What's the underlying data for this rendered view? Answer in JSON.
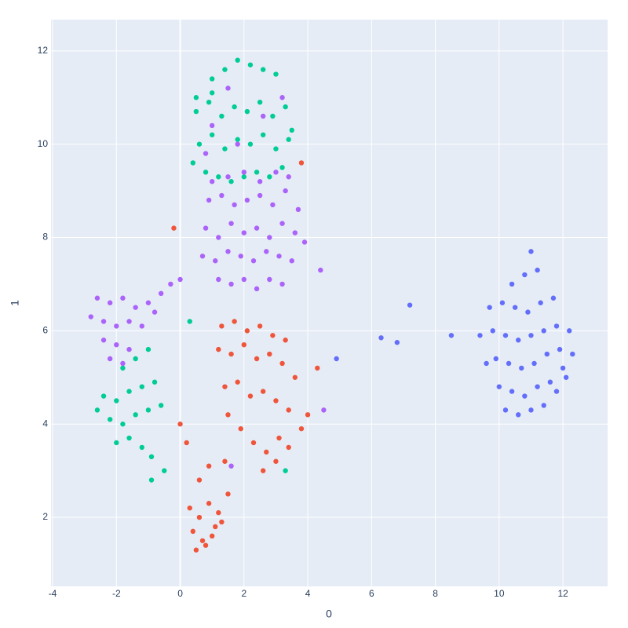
{
  "chart_data": {
    "type": "scatter",
    "x_label": "0",
    "y_label": "1",
    "xlim": [
      -4.05,
      13.4
    ],
    "ylim": [
      0.52,
      12.67
    ],
    "xticks": [
      -4,
      -2,
      0,
      2,
      4,
      6,
      8,
      10,
      12
    ],
    "yticks": [
      2,
      4,
      6,
      8,
      10,
      12
    ],
    "grid": true,
    "zeroline": true,
    "series": [
      {
        "color": "#636efa",
        "x": [
          10.2,
          10.6,
          11.0,
          11.4,
          11.8,
          12.1,
          10.0,
          10.4,
          10.8,
          11.2,
          11.6,
          12.0,
          9.6,
          9.9,
          10.3,
          10.7,
          11.1,
          11.5,
          11.9,
          12.3,
          9.4,
          9.8,
          10.2,
          10.6,
          11.0,
          11.4,
          11.8,
          12.2,
          9.7,
          10.1,
          10.5,
          10.9,
          11.3,
          11.7,
          10.4,
          10.8,
          11.2,
          11.0,
          6.3,
          6.8,
          7.2,
          8.5,
          4.9
        ],
        "values": [
          4.3,
          4.2,
          4.3,
          4.4,
          4.7,
          5.0,
          4.8,
          4.7,
          4.6,
          4.8,
          4.9,
          5.2,
          5.3,
          5.4,
          5.3,
          5.2,
          5.3,
          5.5,
          5.6,
          5.5,
          5.9,
          6.0,
          5.9,
          5.8,
          5.9,
          6.0,
          6.1,
          6.0,
          6.5,
          6.6,
          6.5,
          6.4,
          6.6,
          6.7,
          7.0,
          7.2,
          7.3,
          7.7,
          5.85,
          5.75,
          6.55,
          5.9,
          5.4
        ]
      },
      {
        "color": "#EF553B",
        "x": [
          1.2,
          1.6,
          2.0,
          2.4,
          2.8,
          3.2,
          3.6,
          4.0,
          1.4,
          1.8,
          2.2,
          2.6,
          3.0,
          3.4,
          3.8,
          1.3,
          1.7,
          2.1,
          2.5,
          2.9,
          3.3,
          1.5,
          1.9,
          2.3,
          2.7,
          3.1,
          2.6,
          3.0,
          3.4,
          0.3,
          0.6,
          0.9,
          1.2,
          1.5,
          0.4,
          0.7,
          1.0,
          1.3,
          0.5,
          0.8,
          1.1,
          0.6,
          0.9,
          1.4,
          0.2,
          -0.2,
          4.3,
          3.8,
          0.0
        ],
        "values": [
          5.6,
          5.5,
          5.7,
          5.4,
          5.5,
          5.3,
          5.0,
          4.2,
          4.8,
          4.9,
          4.6,
          4.7,
          4.5,
          4.3,
          3.9,
          6.1,
          6.2,
          6.0,
          6.1,
          5.9,
          5.8,
          4.2,
          3.9,
          3.6,
          3.4,
          3.7,
          3.0,
          3.2,
          3.5,
          2.2,
          2.0,
          2.3,
          2.1,
          2.5,
          1.7,
          1.5,
          1.6,
          1.9,
          1.3,
          1.4,
          1.8,
          2.8,
          3.1,
          3.2,
          3.6,
          8.2,
          5.2,
          9.6,
          4.0
        ]
      },
      {
        "color": "#00cc96",
        "x": [
          0.6,
          1.0,
          1.4,
          1.8,
          2.2,
          2.6,
          3.0,
          3.4,
          0.5,
          0.9,
          1.3,
          1.7,
          2.1,
          2.5,
          2.9,
          3.3,
          0.4,
          0.8,
          1.2,
          1.6,
          2.0,
          2.4,
          2.8,
          3.2,
          1.0,
          1.4,
          1.8,
          2.2,
          2.6,
          3.0,
          0.5,
          1.0,
          3.5,
          -2.4,
          -2.0,
          -1.6,
          -1.2,
          -0.8,
          -2.2,
          -1.8,
          -1.4,
          -1.0,
          -0.6,
          -2.0,
          -1.6,
          -1.2,
          -0.9,
          -1.8,
          -1.4,
          -1.0,
          -2.6,
          -0.5,
          -0.9,
          0.3,
          3.3
        ],
        "values": [
          10.0,
          10.2,
          9.9,
          10.1,
          10.0,
          10.2,
          9.9,
          10.1,
          10.7,
          10.9,
          10.6,
          10.8,
          10.7,
          10.9,
          10.6,
          10.8,
          9.6,
          9.4,
          9.3,
          9.2,
          9.3,
          9.4,
          9.3,
          9.5,
          11.4,
          11.6,
          11.8,
          11.7,
          11.6,
          11.5,
          11.0,
          11.1,
          10.3,
          4.6,
          4.5,
          4.7,
          4.8,
          4.9,
          4.1,
          4.0,
          4.2,
          4.3,
          4.4,
          3.6,
          3.7,
          3.5,
          3.3,
          5.2,
          5.4,
          5.6,
          4.3,
          3.0,
          2.8,
          6.2,
          3.0
        ]
      },
      {
        "color": "#ab63fa",
        "x": [
          0.8,
          1.2,
          1.6,
          2.0,
          2.4,
          2.8,
          3.2,
          3.6,
          0.7,
          1.1,
          1.5,
          1.9,
          2.3,
          2.7,
          3.1,
          3.5,
          3.9,
          0.9,
          1.3,
          1.7,
          2.1,
          2.5,
          2.9,
          3.3,
          3.7,
          1.2,
          1.6,
          2.0,
          2.4,
          2.8,
          3.2,
          1.0,
          1.5,
          2.0,
          2.5,
          3.0,
          3.4,
          -2.8,
          -2.4,
          -2.0,
          -1.6,
          -1.2,
          -2.6,
          -2.2,
          -1.8,
          -1.4,
          -2.4,
          -2.0,
          -1.6,
          -2.2,
          -1.8,
          -1.0,
          -0.6,
          -0.3,
          0.0,
          -0.8,
          1.0,
          1.8,
          2.6,
          3.2,
          0.8,
          1.5,
          4.5,
          1.6,
          4.4
        ],
        "values": [
          8.2,
          8.0,
          8.3,
          8.1,
          8.2,
          8.0,
          8.3,
          8.1,
          7.6,
          7.5,
          7.7,
          7.6,
          7.5,
          7.7,
          7.6,
          7.5,
          7.9,
          8.8,
          8.9,
          8.7,
          8.8,
          8.9,
          8.7,
          9.0,
          8.6,
          7.1,
          7.0,
          7.1,
          6.9,
          7.1,
          7.0,
          9.2,
          9.3,
          9.4,
          9.2,
          9.4,
          9.3,
          6.3,
          6.2,
          6.1,
          6.2,
          6.1,
          6.7,
          6.6,
          6.7,
          6.5,
          5.8,
          5.7,
          5.6,
          5.4,
          5.3,
          6.6,
          6.8,
          7.0,
          7.1,
          6.4,
          10.4,
          10.0,
          10.6,
          11.0,
          9.8,
          11.2,
          4.3,
          3.1,
          7.3
        ]
      }
    ]
  }
}
